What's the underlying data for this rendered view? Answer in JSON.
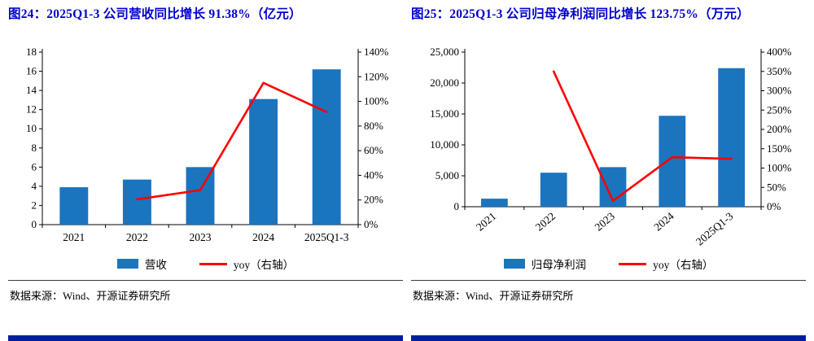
{
  "colors": {
    "bar": "#1B74BE",
    "line": "#FF0000",
    "title": "#0000CC",
    "axis": "#000000",
    "footer_bar": "#001F9E"
  },
  "panels": [
    {
      "title": "图24：2025Q1-3 公司营收同比增长 91.38%（亿元）",
      "legend": [
        {
          "type": "bar",
          "label": "营收"
        },
        {
          "type": "line",
          "label": "yoy（右轴）"
        }
      ],
      "source": "数据来源：Wind、开源证券研究所"
    },
    {
      "title": "图25：2025Q1-3 公司归母净利润同比增长 123.75%（万元）",
      "legend": [
        {
          "type": "bar",
          "label": "归母净利润"
        },
        {
          "type": "line",
          "label": "yoy（右轴）"
        }
      ],
      "source": "数据来源：Wind、开源证券研究所"
    }
  ],
  "chart_data": [
    {
      "type": "bar",
      "title": "2025Q1-3 公司营收同比增长 91.38%（亿元）",
      "categories": [
        "2021",
        "2022",
        "2023",
        "2024",
        "2025Q1-3"
      ],
      "series": [
        {
          "name": "营收",
          "kind": "bar",
          "axis": "left",
          "values": [
            3.9,
            4.7,
            6.0,
            13.1,
            16.2
          ]
        },
        {
          "name": "yoy（右轴）",
          "kind": "line",
          "axis": "right",
          "values": [
            null,
            20.5,
            28,
            115,
            91.38
          ]
        }
      ],
      "left_axis": {
        "min": 0,
        "max": 18,
        "step": 2,
        "format": "number"
      },
      "right_axis": {
        "min": 0,
        "max": 140,
        "step": 20,
        "format": "percent"
      },
      "x_label_rotate": 0,
      "grid": false,
      "legend_position": "bottom"
    },
    {
      "type": "bar",
      "title": "2025Q1-3 公司归母净利润同比增长 123.75%（万元）",
      "categories": [
        "2021",
        "2022",
        "2023",
        "2024",
        "2025Q1-3"
      ],
      "series": [
        {
          "name": "归母净利润",
          "kind": "bar",
          "axis": "left",
          "values": [
            1300,
            5500,
            6400,
            14700,
            22400
          ]
        },
        {
          "name": "yoy（右轴）",
          "kind": "line",
          "axis": "right",
          "values": [
            null,
            350,
            15,
            128,
            123.75
          ]
        }
      ],
      "left_axis": {
        "min": 0,
        "max": 25000,
        "step": 5000,
        "format": "number-comma"
      },
      "right_axis": {
        "min": 0,
        "max": 400,
        "step": 50,
        "format": "percent"
      },
      "x_label_rotate": -40,
      "grid": false,
      "legend_position": "bottom"
    }
  ]
}
